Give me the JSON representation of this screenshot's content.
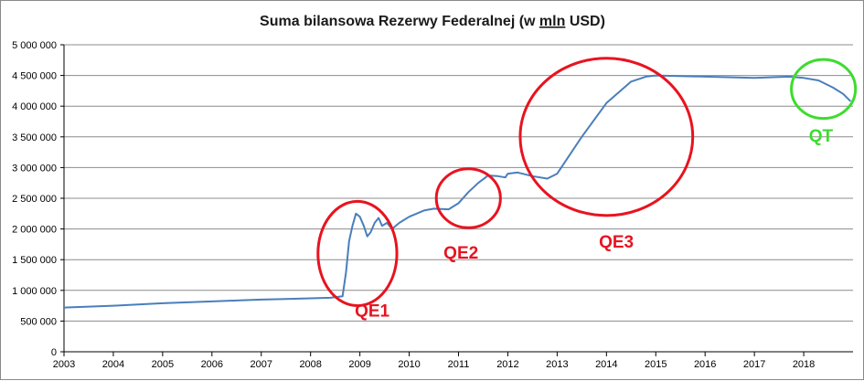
{
  "chart_data": {
    "type": "line",
    "title_prefix": "Suma bilansowa Rezerwy Federalnej (w ",
    "title_underlined": "mln",
    "title_suffix": " USD)",
    "xlabel": "",
    "ylabel": "",
    "xlim": [
      2003,
      2019
    ],
    "ylim": [
      0,
      5000000
    ],
    "y_ticks": [
      0,
      500000,
      1000000,
      1500000,
      2000000,
      2500000,
      3000000,
      3500000,
      4000000,
      4500000,
      5000000
    ],
    "y_tick_labels": [
      "0",
      "500 000",
      "1 000 000",
      "1 500 000",
      "2 000 000",
      "2 500 000",
      "3 000 000",
      "3 500 000",
      "4 000 000",
      "4 500 000",
      "5 000 000"
    ],
    "x_ticks": [
      2003,
      2004,
      2005,
      2006,
      2007,
      2008,
      2009,
      2010,
      2011,
      2012,
      2013,
      2014,
      2015,
      2016,
      2017,
      2018
    ],
    "x_tick_labels": [
      "2003",
      "2004",
      "2005",
      "2006",
      "2007",
      "2008",
      "2009",
      "2010",
      "2011",
      "2012",
      "2013",
      "2014",
      "2015",
      "2016",
      "2017",
      "2018"
    ],
    "grid": "horizontal",
    "legend": "none",
    "series": [
      {
        "color": "#4a7ebb",
        "x": [
          2003.0,
          2003.5,
          2004.0,
          2004.5,
          2005.0,
          2005.5,
          2006.0,
          2006.5,
          2007.0,
          2007.5,
          2008.0,
          2008.4,
          2008.65,
          2008.72,
          2008.78,
          2008.85,
          2008.92,
          2009.0,
          2009.08,
          2009.15,
          2009.22,
          2009.3,
          2009.38,
          2009.45,
          2009.55,
          2009.65,
          2009.8,
          2010.0,
          2010.3,
          2010.5,
          2010.8,
          2011.0,
          2011.2,
          2011.4,
          2011.6,
          2011.8,
          2011.95,
          2012.0,
          2012.2,
          2012.5,
          2012.8,
          2013.0,
          2013.5,
          2014.0,
          2014.5,
          2014.8,
          2015.0,
          2016.0,
          2017.0,
          2017.7,
          2018.0,
          2018.3,
          2018.6,
          2018.8,
          2018.95
        ],
        "y": [
          720000,
          735000,
          750000,
          770000,
          790000,
          805000,
          820000,
          835000,
          850000,
          860000,
          870000,
          880000,
          905000,
          1300000,
          1800000,
          2050000,
          2250000,
          2200000,
          2050000,
          1880000,
          1950000,
          2100000,
          2180000,
          2050000,
          2100000,
          2000000,
          2100000,
          2200000,
          2300000,
          2330000,
          2320000,
          2420000,
          2600000,
          2750000,
          2870000,
          2860000,
          2840000,
          2900000,
          2920000,
          2860000,
          2820000,
          2900000,
          3500000,
          4050000,
          4400000,
          4480000,
          4500000,
          4480000,
          4460000,
          4480000,
          4460000,
          4420000,
          4300000,
          4200000,
          4080000
        ]
      }
    ],
    "annotations": [
      {
        "label": "QE1",
        "color": "#e8131f",
        "cx": 2008.95,
        "cy": 1600000,
        "rx_years": 0.8,
        "ry_value": 850000,
        "label_x": 2009.25,
        "label_y": 570000
      },
      {
        "label": "QE2",
        "color": "#e8131f",
        "cx": 2011.2,
        "cy": 2500000,
        "rx_years": 0.65,
        "ry_value": 480000,
        "label_x": 2011.05,
        "label_y": 1520000
      },
      {
        "label": "QE3",
        "color": "#e8131f",
        "cx": 2014.0,
        "cy": 3500000,
        "rx_years": 1.75,
        "ry_value": 1280000,
        "label_x": 2014.2,
        "label_y": 1700000
      },
      {
        "label": "QT",
        "color": "#3ddc2e",
        "cx": 2018.4,
        "cy": 4280000,
        "rx_years": 0.65,
        "ry_value": 480000,
        "label_x": 2018.35,
        "label_y": 3420000
      }
    ]
  }
}
